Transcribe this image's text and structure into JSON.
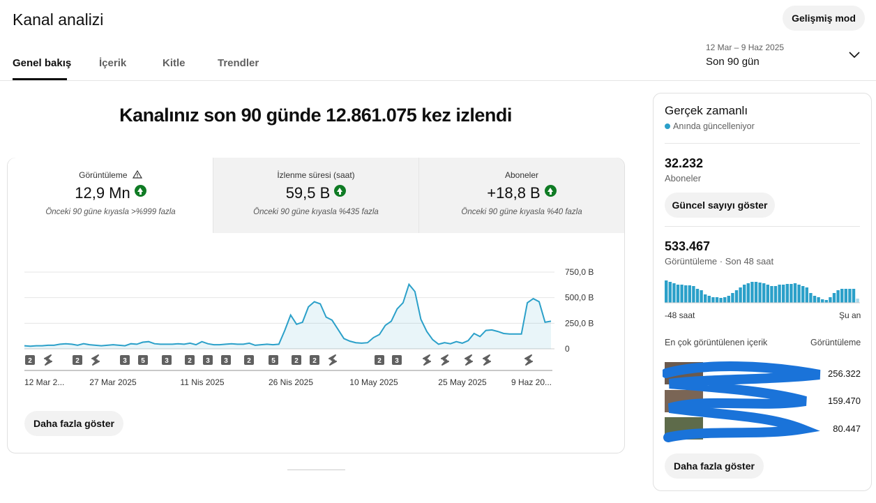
{
  "header": {
    "title": "Kanal analizi",
    "advanced_button": "Gelişmiş mod"
  },
  "tabs": [
    "Genel bakış",
    "İçerik",
    "Kitle",
    "Trendler"
  ],
  "date_range": {
    "range": "12 Mar – 9 Haz 2025",
    "label": "Son 90 gün"
  },
  "headline": "Kanalınız son 90 günde 12.861.075 kez izlendi",
  "metrics": [
    {
      "name": "Görüntüleme",
      "value": "12,9 Mn",
      "comparison": "Önceki 90 güne kıyasla >%999 fazla"
    },
    {
      "name": "İzlenme süresi (saat)",
      "value": "59,5 B",
      "comparison": "Önceki 90 güne kıyasla %435 fazla"
    },
    {
      "name": "Aboneler",
      "value": "+18,8 B",
      "comparison": "Önceki 90 güne kıyasla %40 fazla"
    }
  ],
  "chart_data": {
    "type": "line",
    "xlabels": [
      "12 Mar 2...",
      "27 Mar 2025",
      "11 Nis 2025",
      "26 Nis 2025",
      "10 May 2025",
      "25 May 2025",
      "9 Haz 20..."
    ],
    "series": [
      {
        "color": "#2ba0c9",
        "values": [
          30,
          25,
          30,
          30,
          35,
          35,
          45,
          50,
          45,
          35,
          50,
          40,
          35,
          30,
          35,
          40,
          35,
          30,
          50,
          45,
          65,
          70,
          50,
          45,
          45,
          45,
          50,
          45,
          55,
          40,
          70,
          50,
          40,
          40,
          45,
          50,
          45,
          45,
          55,
          35,
          40,
          45,
          40,
          45,
          180,
          330,
          240,
          260,
          410,
          460,
          440,
          310,
          280,
          190,
          100,
          75,
          60,
          55,
          60,
          110,
          140,
          230,
          270,
          390,
          450,
          630,
          560,
          290,
          170,
          90,
          45,
          60,
          50,
          70,
          55,
          80,
          150,
          120,
          180,
          185,
          170,
          150,
          145,
          145,
          145,
          450,
          490,
          460,
          260,
          270
        ]
      }
    ],
    "ylim": [
      0,
      750
    ],
    "yticks": [
      0,
      {
        "value": 250,
        "label": "250,0 B"
      },
      {
        "value": 500,
        "label": "500,0 B"
      },
      {
        "value": 750,
        "label": "750,0 B"
      }
    ],
    "markers": [
      "2",
      null,
      "2",
      null,
      "3",
      "5",
      "3",
      "2",
      "3",
      "3",
      "2",
      "5",
      "2",
      "2",
      null,
      "2",
      "3",
      null,
      null,
      null,
      null,
      null
    ]
  },
  "show_more": "Daha fazla göster",
  "realtime": {
    "title": "Gerçek zamanlı",
    "subtitle": "Anında güncelleniyor",
    "subscribers": {
      "value": "32.232",
      "label": "Aboneler",
      "button": "Güncel sayıyı göster"
    },
    "views": {
      "value": "533.467",
      "label": "Görüntüleme · Son 48 saat"
    },
    "sparkline": {
      "values": [
        32,
        30,
        28,
        26,
        26,
        25,
        25,
        24,
        20,
        18,
        12,
        10,
        8,
        8,
        7,
        8,
        10,
        14,
        18,
        22,
        26,
        28,
        30,
        30,
        29,
        28,
        26,
        24,
        24,
        26,
        26,
        27,
        27,
        28,
        26,
        24,
        22,
        14,
        10,
        8,
        5,
        4,
        8,
        14,
        18,
        20,
        20,
        20,
        20,
        6
      ],
      "start": "-48 saat",
      "end": "Şu an"
    },
    "top_content": {
      "title": "En çok görüntülenen içerik",
      "column": "Görüntüleme",
      "items": [
        "256.322",
        "159.470",
        "80.447"
      ]
    },
    "button": "Daha fazla göster"
  }
}
